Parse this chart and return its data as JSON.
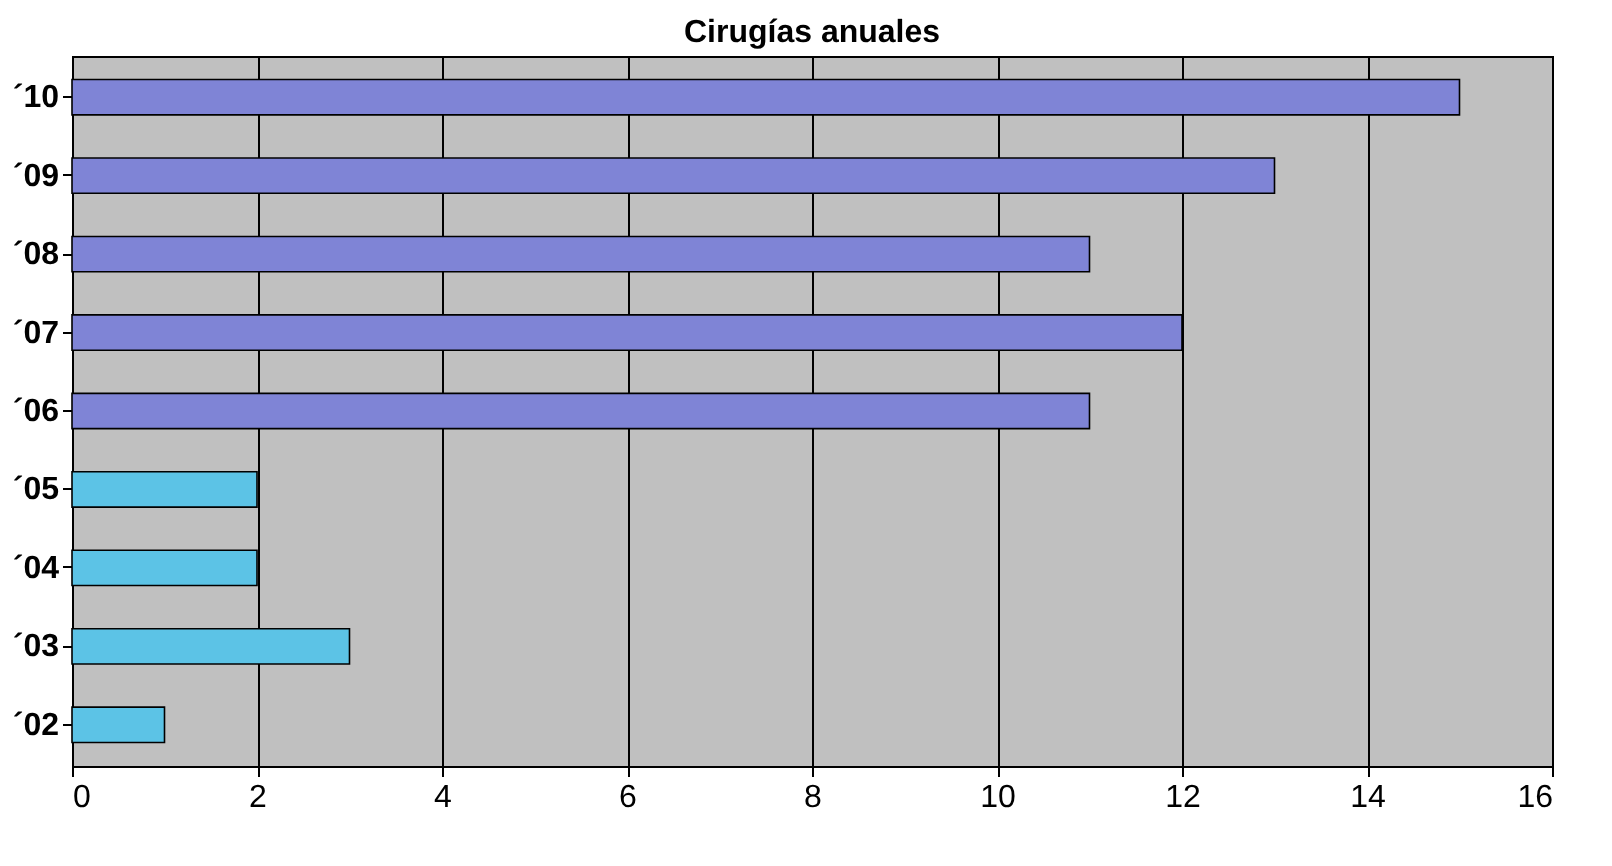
{
  "chart_data": {
    "type": "bar",
    "orientation": "horizontal",
    "title": "Cirugías anuales",
    "categories": [
      "´10",
      "´09",
      "´08",
      "´07",
      "´06",
      "´05",
      "´04",
      "´03",
      "´02"
    ],
    "values": [
      15,
      13,
      11,
      12,
      11,
      2,
      2,
      3,
      1
    ],
    "colors": [
      "#7f84d6",
      "#7f84d6",
      "#7f84d6",
      "#7f84d6",
      "#7f84d6",
      "#5cc3e6",
      "#5cc3e6",
      "#5cc3e6",
      "#5cc3e6"
    ],
    "xlim": [
      0,
      16
    ],
    "xticks": [
      0,
      2,
      4,
      6,
      8,
      10,
      12,
      14,
      16
    ],
    "grid": "x"
  }
}
